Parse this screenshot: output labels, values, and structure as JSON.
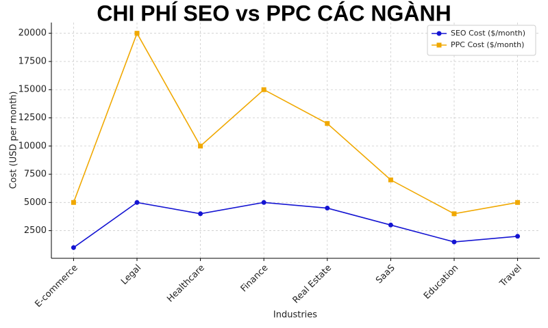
{
  "chart_data": {
    "type": "line",
    "title": "CHI PHÍ SEO vs PPC CÁC NGÀNH",
    "x_label": "Industries",
    "y_label": "Cost (USD per month)",
    "categories": [
      "E-commerce",
      "Legal",
      "Healthcare",
      "Finance",
      "Real Estate",
      "SaaS",
      "Education",
      "Travel"
    ],
    "series": [
      {
        "name": "SEO Cost ($/month)",
        "color": "#1414d2",
        "marker": "circle",
        "values": [
          1000,
          5000,
          4000,
          5000,
          4500,
          3000,
          1500,
          2000
        ]
      },
      {
        "name": "PPC Cost ($/month)",
        "color": "#f0a800",
        "marker": "square",
        "values": [
          5000,
          20000,
          10000,
          15000,
          12000,
          7000,
          4000,
          5000
        ]
      }
    ],
    "ylim": [
      50,
      20950
    ],
    "yticks": [
      2500,
      5000,
      7500,
      10000,
      12500,
      15000,
      17500,
      20000
    ],
    "grid": true,
    "legend": "upper-right"
  }
}
